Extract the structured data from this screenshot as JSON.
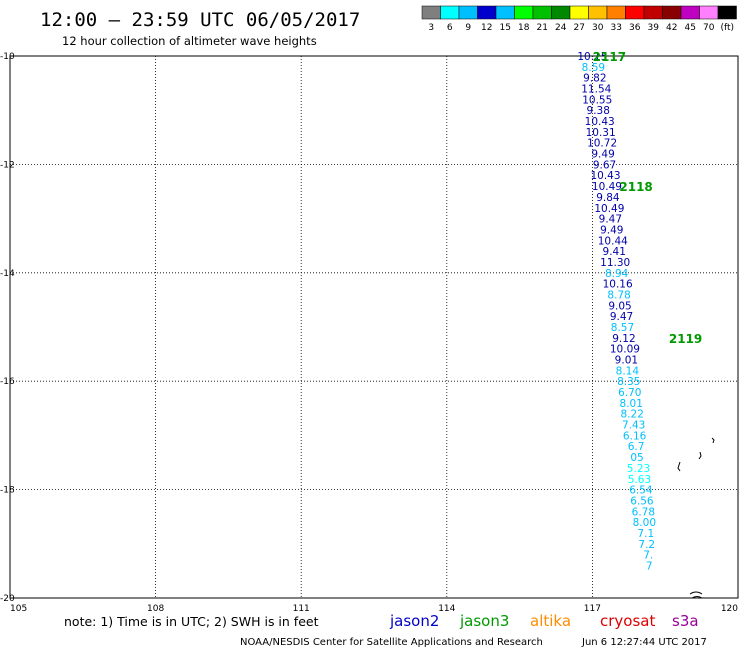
{
  "header": {
    "title": "12:00 – 23:59 UTC 06/05/2017",
    "subtitle": "12 hour collection of altimeter wave heights"
  },
  "colorbar": {
    "labels": [
      "3",
      "6",
      "9",
      "12",
      "15",
      "18",
      "21",
      "24",
      "27",
      "30",
      "33",
      "36",
      "39",
      "42",
      "45",
      "70",
      "(ft)"
    ],
    "colors": [
      "#7f7f7f",
      "#00ffff",
      "#00bfff",
      "#0000cd",
      "#00c0ff",
      "#00ff00",
      "#00c000",
      "#008800",
      "#ffff00",
      "#ffc000",
      "#ff8000",
      "#ff0000",
      "#c00000",
      "#880000",
      "#c000c0",
      "#ff80ff",
      "#000000"
    ]
  },
  "chart_data": {
    "type": "scatter",
    "title": "12:00 – 23:59 UTC 06/05/2017",
    "subtitle": "12 hour collection of altimeter wave heights",
    "xlim": [
      105,
      120
    ],
    "ylim": [
      -20,
      -10
    ],
    "x_ticks": [
      "105",
      "108",
      "111",
      "114",
      "117",
      "120"
    ],
    "y_ticks": [
      "-10",
      "-12",
      "-14",
      "-16",
      "-18",
      "-20"
    ],
    "units": "ft",
    "observations": [
      {
        "x": 117.0,
        "y": -10.0,
        "label": "10.15",
        "color": "#0000aa"
      },
      {
        "x": 117.02,
        "y": -10.2,
        "label": "8.59",
        "color": "#00bfff"
      },
      {
        "x": 117.05,
        "y": -10.4,
        "label": "9.82",
        "color": "#0000aa"
      },
      {
        "x": 117.08,
        "y": -10.6,
        "label": "11.54",
        "color": "#0000aa"
      },
      {
        "x": 117.1,
        "y": -10.8,
        "label": "10.55",
        "color": "#0000aa"
      },
      {
        "x": 117.12,
        "y": -11.0,
        "label": "9.38",
        "color": "#0000aa"
      },
      {
        "x": 117.15,
        "y": -11.2,
        "label": "10.43",
        "color": "#0000aa"
      },
      {
        "x": 117.17,
        "y": -11.4,
        "label": "10.31",
        "color": "#0000aa"
      },
      {
        "x": 117.2,
        "y": -11.6,
        "label": "10.72",
        "color": "#0000aa"
      },
      {
        "x": 117.22,
        "y": -11.8,
        "label": "9.49",
        "color": "#0000aa"
      },
      {
        "x": 117.25,
        "y": -12.0,
        "label": "9.67",
        "color": "#0000aa"
      },
      {
        "x": 117.27,
        "y": -12.2,
        "label": "10.43",
        "color": "#0000aa"
      },
      {
        "x": 117.3,
        "y": -12.4,
        "label": "10.49",
        "color": "#0000aa"
      },
      {
        "x": 117.32,
        "y": -12.6,
        "label": "9.84",
        "color": "#0000aa"
      },
      {
        "x": 117.35,
        "y": -12.8,
        "label": "10.49",
        "color": "#0000aa"
      },
      {
        "x": 117.37,
        "y": -13.0,
        "label": "9.47",
        "color": "#0000aa"
      },
      {
        "x": 117.4,
        "y": -13.2,
        "label": "9.49",
        "color": "#0000aa"
      },
      {
        "x": 117.42,
        "y": -13.4,
        "label": "10.44",
        "color": "#0000aa"
      },
      {
        "x": 117.45,
        "y": -13.6,
        "label": "9.41",
        "color": "#0000aa"
      },
      {
        "x": 117.47,
        "y": -13.8,
        "label": "11.30",
        "color": "#0000aa"
      },
      {
        "x": 117.5,
        "y": -14.0,
        "label": "8.94",
        "color": "#00bfff"
      },
      {
        "x": 117.52,
        "y": -14.2,
        "label": "10.16",
        "color": "#0000aa"
      },
      {
        "x": 117.55,
        "y": -14.4,
        "label": "8.78",
        "color": "#00bfff"
      },
      {
        "x": 117.57,
        "y": -14.6,
        "label": "9.05",
        "color": "#0000aa"
      },
      {
        "x": 117.6,
        "y": -14.8,
        "label": "9.47",
        "color": "#0000aa"
      },
      {
        "x": 117.62,
        "y": -15.0,
        "label": "8.57",
        "color": "#00bfff"
      },
      {
        "x": 117.65,
        "y": -15.2,
        "label": "9.12",
        "color": "#0000aa"
      },
      {
        "x": 117.67,
        "y": -15.4,
        "label": "10.09",
        "color": "#0000aa"
      },
      {
        "x": 117.7,
        "y": -15.6,
        "label": "9.01",
        "color": "#0000aa"
      },
      {
        "x": 117.72,
        "y": -15.8,
        "label": "8.14",
        "color": "#00bfff"
      },
      {
        "x": 117.75,
        "y": -16.0,
        "label": "8.35",
        "color": "#00bfff"
      },
      {
        "x": 117.77,
        "y": -16.2,
        "label": "6.70",
        "color": "#00bfff"
      },
      {
        "x": 117.8,
        "y": -16.4,
        "label": "8.01",
        "color": "#00bfff"
      },
      {
        "x": 117.82,
        "y": -16.6,
        "label": "8.22",
        "color": "#00bfff"
      },
      {
        "x": 117.85,
        "y": -16.8,
        "label": "7.43",
        "color": "#00bfff"
      },
      {
        "x": 117.87,
        "y": -17.0,
        "label": "6.16",
        "color": "#00bfff"
      },
      {
        "x": 117.9,
        "y": -17.2,
        "label": "6.7",
        "color": "#00bfff"
      },
      {
        "x": 117.92,
        "y": -17.4,
        "label": "05",
        "color": "#00bfff"
      },
      {
        "x": 117.95,
        "y": -17.6,
        "label": "5.23",
        "color": "#00ffff"
      },
      {
        "x": 117.97,
        "y": -17.8,
        "label": "5.63",
        "color": "#00ffff"
      },
      {
        "x": 118.0,
        "y": -18.0,
        "label": "6.54",
        "color": "#00bfff"
      },
      {
        "x": 118.02,
        "y": -18.2,
        "label": "6.56",
        "color": "#00bfff"
      },
      {
        "x": 118.05,
        "y": -18.4,
        "label": "6.78",
        "color": "#00bfff"
      },
      {
        "x": 118.07,
        "y": -18.6,
        "label": "8.00",
        "color": "#00bfff"
      },
      {
        "x": 118.1,
        "y": -18.8,
        "label": "7.1",
        "color": "#00bfff"
      },
      {
        "x": 118.12,
        "y": -19.0,
        "label": "7.2",
        "color": "#00bfff"
      },
      {
        "x": 118.15,
        "y": -19.2,
        "label": "7.",
        "color": "#00bfff"
      },
      {
        "x": 118.17,
        "y": -19.4,
        "label": "7",
        "color": "#00bfff"
      }
    ],
    "pass_labels": [
      {
        "x": 117.35,
        "y": -10.0,
        "label": "2117"
      },
      {
        "x": 117.9,
        "y": -12.4,
        "label": "2118"
      },
      {
        "x": 118.92,
        "y": -15.2,
        "label": "2119"
      }
    ]
  },
  "footer": {
    "note": "note: 1) Time is in UTC; 2) SWH is in feet",
    "missions": [
      {
        "label": "jason2",
        "color": "#0000cc"
      },
      {
        "label": "jason3",
        "color": "#009900"
      },
      {
        "label": "altika",
        "color": "#ff8c00"
      },
      {
        "label": "cryosat",
        "color": "#dd0000"
      },
      {
        "label": "s3a",
        "color": "#990099"
      }
    ],
    "credit_left": "NOAA/NESDIS Center for Satellite Applications and Research",
    "credit_right": "Jun  6 12:27:44 UTC 2017"
  }
}
